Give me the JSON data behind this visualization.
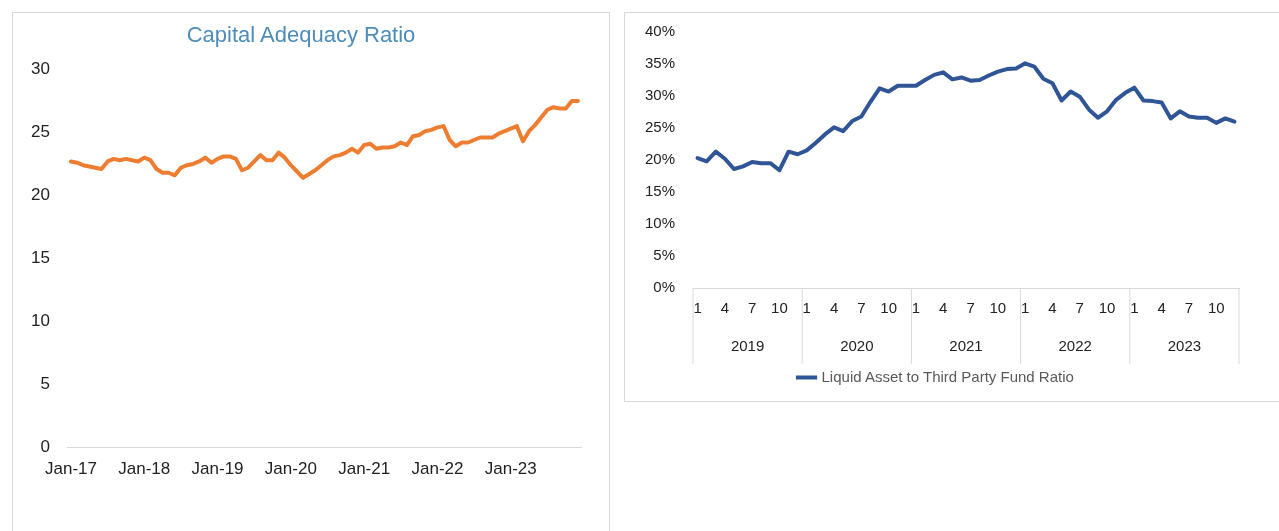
{
  "chart_data": [
    {
      "type": "line",
      "title": "Capital Adequacy Ratio",
      "categories": [
        "Jan-17",
        null,
        null,
        null,
        null,
        null,
        null,
        null,
        null,
        null,
        null,
        null,
        "Jan-18",
        null,
        null,
        null,
        null,
        null,
        null,
        null,
        null,
        null,
        null,
        null,
        "Jan-19",
        null,
        null,
        null,
        null,
        null,
        null,
        null,
        null,
        null,
        null,
        null,
        "Jan-20",
        null,
        null,
        null,
        null,
        null,
        null,
        null,
        null,
        null,
        null,
        null,
        "Jan-21",
        null,
        null,
        null,
        null,
        null,
        null,
        null,
        null,
        null,
        null,
        null,
        "Jan-22",
        null,
        null,
        null,
        null,
        null,
        null,
        null,
        null,
        null,
        null,
        null,
        "Jan-23",
        null,
        null,
        null,
        null,
        null,
        null,
        null,
        null,
        null,
        null,
        null
      ],
      "series": [
        {
          "color": "#ed7d31",
          "values": [
            22.7,
            22.6,
            22.4,
            22.3,
            22.2,
            22.1,
            22.7,
            22.9,
            22.8,
            22.9,
            22.8,
            22.7,
            23.0,
            22.8,
            22.1,
            21.8,
            21.8,
            21.6,
            22.2,
            22.4,
            22.5,
            22.7,
            23.0,
            22.6,
            22.9,
            23.1,
            23.1,
            22.9,
            22.0,
            22.2,
            22.7,
            23.2,
            22.8,
            22.8,
            23.4,
            23.0,
            22.4,
            21.9,
            21.4,
            21.7,
            22.0,
            22.4,
            22.8,
            23.1,
            23.2,
            23.4,
            23.7,
            23.4,
            24.0,
            24.1,
            23.7,
            23.8,
            23.8,
            23.9,
            24.2,
            24.0,
            24.7,
            24.8,
            25.1,
            25.2,
            25.4,
            25.5,
            24.4,
            23.9,
            24.2,
            24.2,
            24.4,
            24.6,
            24.6,
            24.6,
            24.9,
            25.1,
            25.3,
            25.5,
            24.3,
            25.1,
            25.6,
            26.2,
            26.8,
            27.0,
            26.9,
            26.9,
            27.5,
            27.5
          ]
        }
      ],
      "ylim": [
        0,
        30
      ],
      "yticks": [
        0,
        5,
        10,
        15,
        20,
        25,
        30
      ],
      "grid": false,
      "legend": false,
      "marker": "none"
    },
    {
      "type": "line",
      "categories": [
        "1",
        null,
        null,
        "4",
        null,
        null,
        "7",
        null,
        null,
        "10",
        null,
        null,
        "1",
        null,
        null,
        "4",
        null,
        null,
        "7",
        null,
        null,
        "10",
        null,
        null,
        "1",
        null,
        null,
        "4",
        null,
        null,
        "7",
        null,
        null,
        "10",
        null,
        null,
        "1",
        null,
        null,
        "4",
        null,
        null,
        "7",
        null,
        null,
        "10",
        null,
        null,
        "1",
        null,
        null,
        "4",
        null,
        null,
        "7",
        null,
        null,
        "10",
        null,
        null
      ],
      "series": [
        {
          "name": "Liquid Asset to Third Party Fund Ratio",
          "color": "#2f5597",
          "values": [
            20.3,
            19.8,
            21.3,
            20.2,
            18.6,
            19.0,
            19.7,
            19.5,
            19.5,
            18.4,
            21.3,
            20.9,
            21.5,
            22.7,
            24.0,
            25.1,
            24.5,
            26.1,
            26.8,
            29.1,
            31.2,
            30.7,
            31.6,
            31.6,
            31.6,
            32.5,
            33.3,
            33.7,
            32.6,
            32.9,
            32.4,
            32.5,
            33.2,
            33.8,
            34.2,
            34.3,
            35.1,
            34.6,
            32.7,
            32.0,
            29.3,
            30.7,
            29.9,
            27.9,
            26.6,
            27.6,
            29.4,
            30.5,
            31.3,
            29.3,
            29.2,
            29.0,
            26.5,
            27.6,
            26.8,
            26.6,
            26.6,
            25.8,
            26.5,
            26.0
          ]
        }
      ],
      "ylim": [
        0,
        40
      ],
      "yticks": [
        {
          "value": 0,
          "label": "0%"
        },
        {
          "value": 5,
          "label": "5%"
        },
        {
          "value": 10,
          "label": "10%"
        },
        {
          "value": 15,
          "label": "15%"
        },
        {
          "value": 20,
          "label": "20%"
        },
        {
          "value": 25,
          "label": "25%"
        },
        {
          "value": 30,
          "label": "30%"
        },
        {
          "value": 35,
          "label": "35%"
        },
        {
          "value": 40,
          "label": "40%"
        }
      ],
      "annotations": [
        "2019",
        "2020",
        "2021",
        "2022",
        "2023"
      ],
      "grid": false,
      "legend": "bottom",
      "marker": "none"
    }
  ]
}
